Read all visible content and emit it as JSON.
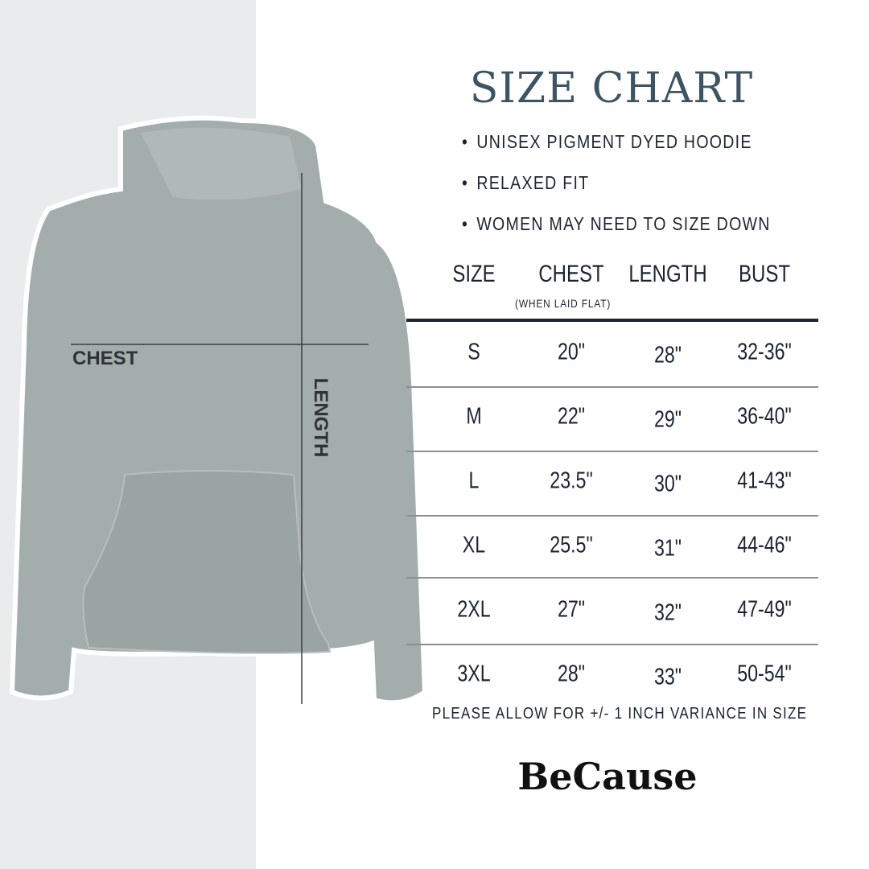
{
  "title": "SIZE CHART",
  "bullets": [
    "UNISEX PIGMENT DYED HOODIE",
    "RELAXED FIT",
    "WOMEN MAY NEED TO SIZE DOWN"
  ],
  "image_labels": {
    "chest": "CHEST",
    "length": "LENGTH"
  },
  "table": {
    "headers": [
      "SIZE",
      "CHEST",
      "LENGTH",
      "BUST"
    ],
    "chest_subtitle": "(WHEN LAID FLAT)",
    "rows": [
      [
        "S",
        "20\"",
        "28\"",
        "32-36\""
      ],
      [
        "M",
        "22\"",
        "29\"",
        "36-40\""
      ],
      [
        "L",
        "23.5\"",
        "30\"",
        "41-43\""
      ],
      [
        "XL",
        "25.5\"",
        "31\"",
        "44-46\""
      ],
      [
        "2XL",
        "27\"",
        "32\"",
        "47-49\""
      ],
      [
        "3XL",
        "28\"",
        "33\"",
        "50-54\""
      ]
    ]
  },
  "note": "PLEASE ALLOW FOR +/- 1 INCH VARIANCE IN SIZE",
  "brand": "BeCause",
  "colors": {
    "title": "#3d5563",
    "text": "#1c2433",
    "hoodie": "#a3adac",
    "left_bg": "#e9ebec"
  }
}
